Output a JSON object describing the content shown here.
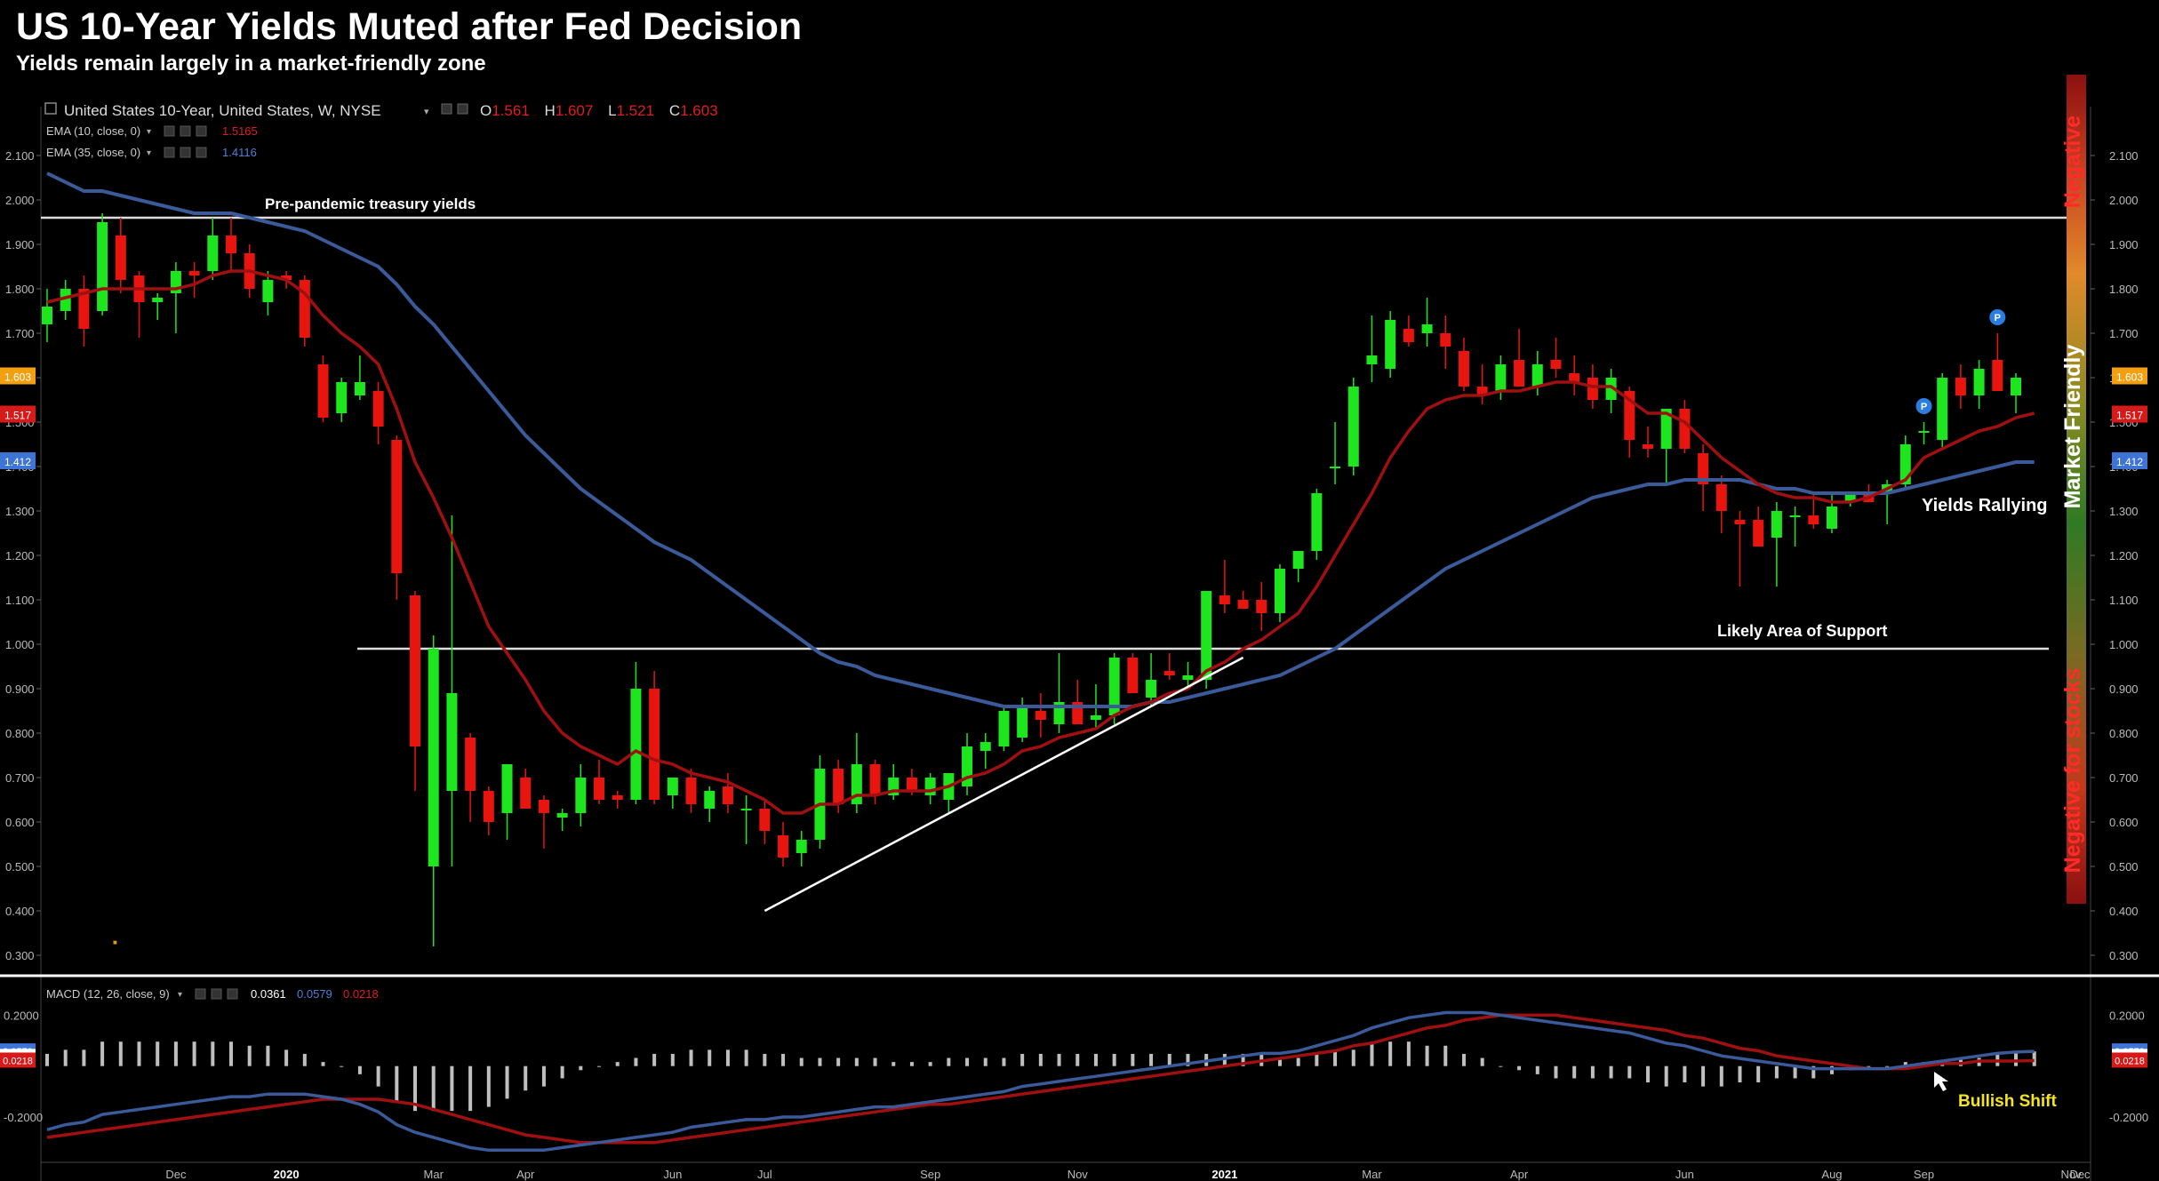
{
  "title": "US 10-Year Yields Muted after Fed Decision",
  "subtitle": "Yields remain largely in a market-friendly zone",
  "chart_data": {
    "type": "candlestick",
    "instrument": "United States 10-Year, United States, W, NYSE",
    "ohlc_header": {
      "o_label": "O",
      "o": "1.561",
      "h_label": "H",
      "h": "1.607",
      "l_label": "L",
      "l": "1.521",
      "c_label": "C",
      "c": "1.603"
    },
    "ema_legend": [
      {
        "name": "EMA (10, close, 0)",
        "value": "1.5165",
        "color": "#e11d1d"
      },
      {
        "name": "EMA (35, close, 0)",
        "value": "1.4116",
        "color": "#4f7fd6"
      }
    ],
    "y_ticks": [
      "2.100",
      "2.000",
      "1.900",
      "1.800",
      "1.700",
      "1.600",
      "1.500",
      "1.400",
      "1.300",
      "1.200",
      "1.100",
      "1.000",
      "0.900",
      "0.800",
      "0.700",
      "0.600",
      "0.500",
      "0.400",
      "0.300"
    ],
    "ylim": [
      0.28,
      2.15
    ],
    "price_tags": [
      {
        "text": "1.603",
        "value": 1.603,
        "color": "#f2a011"
      },
      {
        "text": "1.517",
        "value": 1.517,
        "color": "#d61a1a"
      },
      {
        "text": "1.412",
        "value": 1.412,
        "color": "#3e74d6"
      }
    ],
    "x_labels": [
      "Dec",
      "2020",
      "Mar",
      "Apr",
      "Jun",
      "Jul",
      "Sep",
      "Nov",
      "2021",
      "Mar",
      "Apr",
      "Jun",
      "Aug",
      "Sep",
      "Nov",
      "Dec"
    ],
    "annotations": {
      "pre_pandemic": "Pre-pandemic treasury yields",
      "support": "Likely Area of Support",
      "rallying": "Yields Rallying",
      "bullish": "Bullish Shift",
      "negative_top": "Negative",
      "market_friendly": "Market Friendly",
      "negative_bottom": "Negative for stocks"
    },
    "marker_label": "P",
    "candles": [
      [
        1.72,
        1.8,
        1.68,
        1.76
      ],
      [
        1.75,
        1.82,
        1.73,
        1.8
      ],
      [
        1.8,
        1.83,
        1.67,
        1.71
      ],
      [
        1.75,
        1.97,
        1.74,
        1.95
      ],
      [
        1.92,
        1.96,
        1.79,
        1.82
      ],
      [
        1.83,
        1.84,
        1.69,
        1.77
      ],
      [
        1.77,
        1.79,
        1.73,
        1.78
      ],
      [
        1.79,
        1.86,
        1.7,
        1.84
      ],
      [
        1.84,
        1.86,
        1.78,
        1.83
      ],
      [
        1.84,
        1.96,
        1.82,
        1.92
      ],
      [
        1.92,
        1.96,
        1.84,
        1.88
      ],
      [
        1.88,
        1.9,
        1.78,
        1.8
      ],
      [
        1.77,
        1.84,
        1.74,
        1.82
      ],
      [
        1.83,
        1.84,
        1.8,
        1.82
      ],
      [
        1.82,
        1.83,
        1.67,
        1.69
      ],
      [
        1.63,
        1.65,
        1.5,
        1.51
      ],
      [
        1.52,
        1.6,
        1.5,
        1.59
      ],
      [
        1.56,
        1.65,
        1.55,
        1.59
      ],
      [
        1.57,
        1.59,
        1.45,
        1.49
      ],
      [
        1.46,
        1.47,
        1.1,
        1.16
      ],
      [
        1.11,
        1.12,
        0.67,
        0.77
      ],
      [
        0.5,
        1.02,
        0.32,
        0.99
      ],
      [
        0.67,
        1.29,
        0.5,
        0.89
      ],
      [
        0.79,
        0.8,
        0.6,
        0.67
      ],
      [
        0.67,
        0.68,
        0.57,
        0.6
      ],
      [
        0.62,
        0.73,
        0.56,
        0.73
      ],
      [
        0.7,
        0.72,
        0.63,
        0.63
      ],
      [
        0.65,
        0.66,
        0.54,
        0.62
      ],
      [
        0.61,
        0.63,
        0.58,
        0.62
      ],
      [
        0.62,
        0.73,
        0.59,
        0.7
      ],
      [
        0.7,
        0.74,
        0.64,
        0.65
      ],
      [
        0.66,
        0.67,
        0.63,
        0.65
      ],
      [
        0.65,
        0.96,
        0.64,
        0.9
      ],
      [
        0.9,
        0.94,
        0.64,
        0.65
      ],
      [
        0.66,
        0.7,
        0.63,
        0.7
      ],
      [
        0.7,
        0.72,
        0.62,
        0.64
      ],
      [
        0.63,
        0.68,
        0.6,
        0.67
      ],
      [
        0.68,
        0.71,
        0.62,
        0.64
      ],
      [
        0.63,
        0.66,
        0.55,
        0.63
      ],
      [
        0.63,
        0.65,
        0.55,
        0.58
      ],
      [
        0.57,
        0.6,
        0.5,
        0.52
      ],
      [
        0.53,
        0.58,
        0.5,
        0.56
      ],
      [
        0.56,
        0.75,
        0.54,
        0.72
      ],
      [
        0.72,
        0.74,
        0.62,
        0.64
      ],
      [
        0.64,
        0.8,
        0.62,
        0.73
      ],
      [
        0.73,
        0.74,
        0.64,
        0.66
      ],
      [
        0.66,
        0.73,
        0.65,
        0.7
      ],
      [
        0.7,
        0.72,
        0.66,
        0.67
      ],
      [
        0.66,
        0.71,
        0.64,
        0.7
      ],
      [
        0.65,
        0.7,
        0.62,
        0.71
      ],
      [
        0.68,
        0.8,
        0.66,
        0.77
      ],
      [
        0.76,
        0.8,
        0.72,
        0.78
      ],
      [
        0.77,
        0.86,
        0.76,
        0.85
      ],
      [
        0.79,
        0.88,
        0.78,
        0.86
      ],
      [
        0.85,
        0.89,
        0.79,
        0.83
      ],
      [
        0.82,
        0.98,
        0.8,
        0.87
      ],
      [
        0.87,
        0.92,
        0.82,
        0.82
      ],
      [
        0.83,
        0.91,
        0.81,
        0.84
      ],
      [
        0.84,
        0.98,
        0.82,
        0.97
      ],
      [
        0.97,
        0.98,
        0.89,
        0.89
      ],
      [
        0.88,
        0.98,
        0.86,
        0.92
      ],
      [
        0.94,
        0.98,
        0.92,
        0.93
      ],
      [
        0.92,
        0.96,
        0.9,
        0.93
      ],
      [
        0.92,
        1.12,
        0.9,
        1.12
      ],
      [
        1.11,
        1.19,
        1.07,
        1.09
      ],
      [
        1.1,
        1.12,
        1.08,
        1.08
      ],
      [
        1.1,
        1.14,
        1.03,
        1.07
      ],
      [
        1.07,
        1.18,
        1.05,
        1.17
      ],
      [
        1.17,
        1.2,
        1.14,
        1.21
      ],
      [
        1.21,
        1.35,
        1.19,
        1.34
      ],
      [
        1.4,
        1.5,
        1.36,
        1.4
      ],
      [
        1.4,
        1.6,
        1.38,
        1.58
      ],
      [
        1.63,
        1.74,
        1.59,
        1.65
      ],
      [
        1.62,
        1.75,
        1.6,
        1.73
      ],
      [
        1.71,
        1.74,
        1.67,
        1.68
      ],
      [
        1.7,
        1.78,
        1.67,
        1.72
      ],
      [
        1.7,
        1.74,
        1.62,
        1.67
      ],
      [
        1.66,
        1.69,
        1.57,
        1.58
      ],
      [
        1.58,
        1.63,
        1.54,
        1.56
      ],
      [
        1.57,
        1.65,
        1.55,
        1.63
      ],
      [
        1.64,
        1.71,
        1.58,
        1.58
      ],
      [
        1.58,
        1.66,
        1.56,
        1.63
      ],
      [
        1.64,
        1.69,
        1.6,
        1.62
      ],
      [
        1.61,
        1.65,
        1.56,
        1.59
      ],
      [
        1.6,
        1.63,
        1.53,
        1.55
      ],
      [
        1.55,
        1.62,
        1.52,
        1.6
      ],
      [
        1.57,
        1.58,
        1.42,
        1.46
      ],
      [
        1.45,
        1.49,
        1.42,
        1.44
      ],
      [
        1.44,
        1.53,
        1.36,
        1.53
      ],
      [
        1.53,
        1.55,
        1.43,
        1.44
      ],
      [
        1.43,
        1.45,
        1.3,
        1.36
      ],
      [
        1.36,
        1.38,
        1.25,
        1.3
      ],
      [
        1.28,
        1.3,
        1.13,
        1.27
      ],
      [
        1.28,
        1.31,
        1.22,
        1.22
      ],
      [
        1.24,
        1.32,
        1.13,
        1.3
      ],
      [
        1.29,
        1.31,
        1.22,
        1.29
      ],
      [
        1.29,
        1.34,
        1.26,
        1.27
      ],
      [
        1.26,
        1.34,
        1.25,
        1.31
      ],
      [
        1.32,
        1.34,
        1.31,
        1.34
      ],
      [
        1.34,
        1.36,
        1.32,
        1.32
      ],
      [
        1.34,
        1.37,
        1.27,
        1.36
      ],
      [
        1.36,
        1.47,
        1.35,
        1.45
      ],
      [
        1.48,
        1.5,
        1.45,
        1.48
      ],
      [
        1.46,
        1.61,
        1.44,
        1.6
      ],
      [
        1.6,
        1.63,
        1.53,
        1.56
      ],
      [
        1.56,
        1.64,
        1.53,
        1.62
      ],
      [
        1.64,
        1.7,
        1.57,
        1.57
      ],
      [
        1.56,
        1.61,
        1.52,
        1.6
      ]
    ],
    "ema10": [
      1.77,
      1.78,
      1.79,
      1.8,
      1.8,
      1.8,
      1.8,
      1.8,
      1.81,
      1.83,
      1.84,
      1.84,
      1.83,
      1.82,
      1.79,
      1.74,
      1.7,
      1.67,
      1.63,
      1.53,
      1.41,
      1.33,
      1.24,
      1.14,
      1.04,
      0.98,
      0.92,
      0.85,
      0.8,
      0.77,
      0.75,
      0.73,
      0.76,
      0.74,
      0.73,
      0.71,
      0.7,
      0.69,
      0.67,
      0.65,
      0.62,
      0.62,
      0.64,
      0.64,
      0.66,
      0.66,
      0.67,
      0.67,
      0.67,
      0.68,
      0.7,
      0.71,
      0.73,
      0.76,
      0.77,
      0.79,
      0.8,
      0.81,
      0.84,
      0.86,
      0.87,
      0.89,
      0.9,
      0.94,
      0.96,
      0.99,
      1.01,
      1.04,
      1.07,
      1.13,
      1.2,
      1.27,
      1.34,
      1.42,
      1.48,
      1.53,
      1.55,
      1.56,
      1.56,
      1.57,
      1.57,
      1.58,
      1.59,
      1.59,
      1.58,
      1.58,
      1.55,
      1.52,
      1.52,
      1.5,
      1.46,
      1.42,
      1.39,
      1.36,
      1.34,
      1.33,
      1.33,
      1.32,
      1.32,
      1.33,
      1.35,
      1.37,
      1.42,
      1.44,
      1.46,
      1.48,
      1.49,
      1.51,
      1.52
    ],
    "ema35": [
      2.06,
      2.04,
      2.02,
      2.02,
      2.01,
      2.0,
      1.99,
      1.98,
      1.97,
      1.97,
      1.97,
      1.96,
      1.95,
      1.94,
      1.93,
      1.91,
      1.89,
      1.87,
      1.85,
      1.81,
      1.76,
      1.72,
      1.67,
      1.62,
      1.57,
      1.52,
      1.47,
      1.43,
      1.39,
      1.35,
      1.32,
      1.29,
      1.26,
      1.23,
      1.21,
      1.19,
      1.16,
      1.13,
      1.1,
      1.07,
      1.04,
      1.01,
      0.98,
      0.96,
      0.95,
      0.93,
      0.92,
      0.91,
      0.9,
      0.89,
      0.88,
      0.87,
      0.86,
      0.86,
      0.86,
      0.86,
      0.86,
      0.86,
      0.86,
      0.86,
      0.87,
      0.87,
      0.88,
      0.89,
      0.9,
      0.91,
      0.92,
      0.93,
      0.95,
      0.97,
      0.99,
      1.02,
      1.05,
      1.08,
      1.11,
      1.14,
      1.17,
      1.19,
      1.21,
      1.23,
      1.25,
      1.27,
      1.29,
      1.31,
      1.33,
      1.34,
      1.35,
      1.36,
      1.36,
      1.37,
      1.37,
      1.37,
      1.37,
      1.36,
      1.35,
      1.35,
      1.34,
      1.34,
      1.34,
      1.34,
      1.34,
      1.35,
      1.36,
      1.37,
      1.38,
      1.39,
      1.4,
      1.41,
      1.41
    ],
    "marker_candles": [
      102,
      106
    ],
    "support_level": 0.99,
    "prepandemic_level": 1.96,
    "trendline": {
      "from": [
        39,
        0.4
      ],
      "to": [
        65,
        0.97
      ]
    },
    "macd": {
      "legend_name": "MACD (12, 26, close, 9)",
      "values_text": [
        "0.0361",
        "0.0579",
        "0.0218"
      ],
      "values_colors": [
        "#ffffff",
        "#4f7fd6",
        "#e11d1d"
      ],
      "y_ticks": [
        "0.2000",
        "-0.2000"
      ],
      "ylim": [
        -0.35,
        0.32
      ],
      "price_tags": [
        {
          "text": "0.0579",
          "value": 0.0579,
          "color": "#3e74d6"
        },
        {
          "text": "0.0361",
          "value": 0.0361,
          "color": "#ffffff"
        },
        {
          "text": "0.0218",
          "value": 0.0218,
          "color": "#d61a1a"
        }
      ],
      "macd_line": [
        -0.25,
        -0.23,
        -0.22,
        -0.19,
        -0.18,
        -0.17,
        -0.16,
        -0.15,
        -0.14,
        -0.13,
        -0.12,
        -0.12,
        -0.11,
        -0.11,
        -0.11,
        -0.12,
        -0.13,
        -0.15,
        -0.18,
        -0.23,
        -0.26,
        -0.28,
        -0.3,
        -0.32,
        -0.33,
        -0.33,
        -0.33,
        -0.33,
        -0.32,
        -0.31,
        -0.3,
        -0.29,
        -0.28,
        -0.27,
        -0.26,
        -0.24,
        -0.23,
        -0.22,
        -0.21,
        -0.21,
        -0.2,
        -0.2,
        -0.19,
        -0.18,
        -0.17,
        -0.16,
        -0.16,
        -0.15,
        -0.14,
        -0.13,
        -0.12,
        -0.11,
        -0.1,
        -0.08,
        -0.07,
        -0.06,
        -0.05,
        -0.04,
        -0.03,
        -0.02,
        -0.01,
        0.0,
        0.01,
        0.02,
        0.03,
        0.04,
        0.05,
        0.05,
        0.06,
        0.08,
        0.1,
        0.12,
        0.15,
        0.17,
        0.19,
        0.2,
        0.21,
        0.21,
        0.21,
        0.2,
        0.19,
        0.18,
        0.17,
        0.16,
        0.15,
        0.14,
        0.13,
        0.11,
        0.09,
        0.08,
        0.06,
        0.04,
        0.03,
        0.02,
        0.01,
        0.0,
        -0.01,
        -0.01,
        -0.01,
        -0.01,
        -0.01,
        0.0,
        0.01,
        0.02,
        0.03,
        0.04,
        0.05,
        0.055,
        0.058
      ],
      "signal_line": [
        -0.28,
        -0.27,
        -0.26,
        -0.25,
        -0.24,
        -0.23,
        -0.22,
        -0.21,
        -0.2,
        -0.19,
        -0.18,
        -0.17,
        -0.16,
        -0.15,
        -0.14,
        -0.13,
        -0.13,
        -0.13,
        -0.13,
        -0.14,
        -0.15,
        -0.17,
        -0.19,
        -0.21,
        -0.23,
        -0.25,
        -0.27,
        -0.28,
        -0.29,
        -0.3,
        -0.3,
        -0.3,
        -0.3,
        -0.3,
        -0.29,
        -0.28,
        -0.27,
        -0.26,
        -0.25,
        -0.24,
        -0.23,
        -0.22,
        -0.21,
        -0.2,
        -0.19,
        -0.18,
        -0.17,
        -0.16,
        -0.15,
        -0.15,
        -0.14,
        -0.13,
        -0.12,
        -0.11,
        -0.1,
        -0.09,
        -0.08,
        -0.07,
        -0.06,
        -0.05,
        -0.04,
        -0.03,
        -0.02,
        -0.01,
        0.0,
        0.01,
        0.02,
        0.03,
        0.04,
        0.05,
        0.06,
        0.08,
        0.09,
        0.11,
        0.13,
        0.15,
        0.16,
        0.18,
        0.19,
        0.2,
        0.2,
        0.2,
        0.2,
        0.19,
        0.18,
        0.17,
        0.16,
        0.15,
        0.14,
        0.12,
        0.11,
        0.09,
        0.07,
        0.06,
        0.04,
        0.03,
        0.02,
        0.01,
        0.0,
        -0.01,
        -0.01,
        -0.01,
        0.0,
        0.01,
        0.01,
        0.02,
        0.02,
        0.02,
        0.022
      ]
    }
  }
}
